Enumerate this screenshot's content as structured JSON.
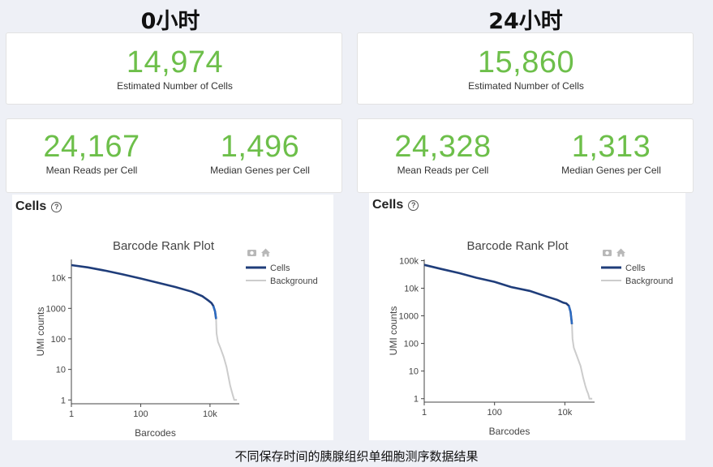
{
  "panels": [
    {
      "title": "0小时",
      "estimated_cells": {
        "value": "14,974",
        "label": "Estimated Number of Cells"
      },
      "mean_reads": {
        "value": "24,167",
        "label": "Mean Reads per Cell"
      },
      "median_genes": {
        "value": "1,496",
        "label": "Median Genes per Cell"
      },
      "cells_heading": "Cells",
      "help_glyph": "?"
    },
    {
      "title": "24小时",
      "estimated_cells": {
        "value": "15,860",
        "label": "Estimated Number of Cells"
      },
      "mean_reads": {
        "value": "24,328",
        "label": "Mean Reads per Cell"
      },
      "median_genes": {
        "value": "1,313",
        "label": "Median Genes per Cell"
      },
      "cells_heading": "Cells",
      "help_glyph": "?"
    }
  ],
  "caption": "不同保存时间的胰腺组织单细胞测序数据结果",
  "colors": {
    "cells": "#1f3d7a",
    "background": "#cccccc",
    "metric": "#6dbf4a"
  },
  "icons": [
    "camera-icon",
    "home-icon"
  ],
  "chart_data": [
    {
      "type": "line",
      "title": "Barcode Rank Plot",
      "xlabel": "Barcodes",
      "ylabel": "UMI counts",
      "xscale": "log",
      "yscale": "log",
      "x_ticks": [
        1,
        100,
        10000
      ],
      "x_tick_labels": [
        "1",
        "100",
        "10k"
      ],
      "y_ticks": [
        1,
        10,
        100,
        1000,
        10000
      ],
      "y_tick_labels": [
        "1",
        "10",
        "100",
        "1000",
        "10k"
      ],
      "xlim": [
        1,
        70000
      ],
      "ylim": [
        0.75,
        40000
      ],
      "legend": "right",
      "series": [
        {
          "name": "Cells",
          "x": [
            1,
            3,
            10,
            30,
            100,
            300,
            1000,
            3000,
            6000,
            9000,
            11000,
            12500,
            14000,
            14974
          ],
          "y": [
            26000,
            22000,
            17000,
            13000,
            9500,
            7000,
            5000,
            3500,
            2500,
            1800,
            1500,
            1200,
            800,
            450
          ]
        },
        {
          "name": "Background",
          "x": [
            14974,
            15500,
            17000,
            20000,
            25000,
            30000,
            35000,
            38000,
            42000,
            45000,
            50000,
            60000
          ],
          "y": [
            450,
            150,
            80,
            50,
            25,
            12,
            5,
            3,
            2,
            1.5,
            1,
            1
          ]
        }
      ]
    },
    {
      "type": "line",
      "title": "Barcode Rank Plot",
      "xlabel": "Barcodes",
      "ylabel": "UMI counts",
      "xscale": "log",
      "yscale": "log",
      "x_ticks": [
        1,
        100,
        10000
      ],
      "x_tick_labels": [
        "1",
        "100",
        "10k"
      ],
      "y_ticks": [
        1,
        10,
        100,
        1000,
        10000,
        100000
      ],
      "y_tick_labels": [
        "1",
        "10",
        "100",
        "1000",
        "10k",
        "100k"
      ],
      "xlim": [
        1,
        70000
      ],
      "ylim": [
        0.75,
        110000
      ],
      "legend": "right",
      "series": [
        {
          "name": "Cells",
          "x": [
            1,
            3,
            10,
            30,
            100,
            300,
            1000,
            3000,
            6000,
            9000,
            11000,
            13000,
            14500,
            15860
          ],
          "y": [
            70000,
            50000,
            35000,
            24000,
            17000,
            11000,
            8000,
            5000,
            3800,
            3000,
            2800,
            2300,
            1400,
            500
          ]
        },
        {
          "name": "Background",
          "x": [
            15860,
            16500,
            18000,
            22000,
            28000,
            33000,
            38000,
            42000,
            46000,
            50000,
            60000
          ],
          "y": [
            500,
            150,
            70,
            35,
            15,
            6,
            3,
            2,
            1.5,
            1,
            1
          ]
        }
      ]
    }
  ]
}
